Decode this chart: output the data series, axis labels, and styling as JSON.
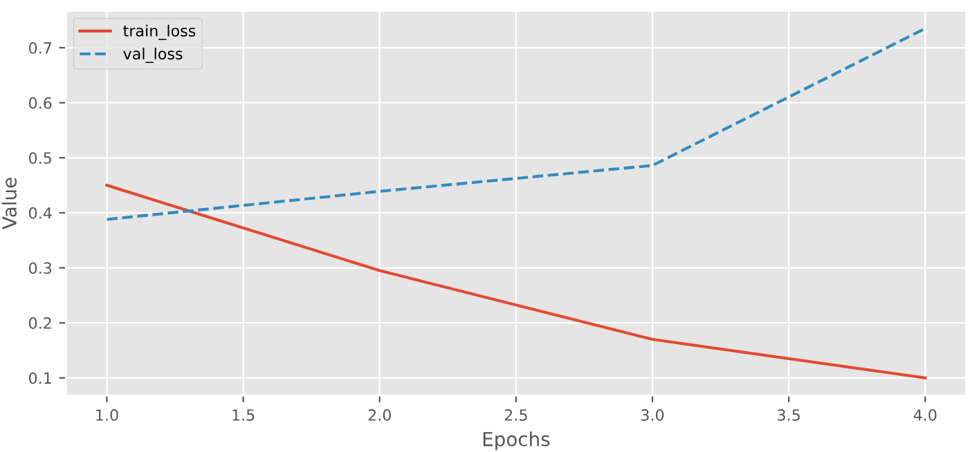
{
  "chart_data": {
    "type": "line",
    "xlabel": "Epochs",
    "ylabel": "Value",
    "x": [
      1,
      2,
      3,
      4
    ],
    "series": [
      {
        "name": "train_loss",
        "color": "#e24a33",
        "values": [
          0.45,
          0.295,
          0.17,
          0.1
        ],
        "line_style": "solid"
      },
      {
        "name": "val_loss",
        "color": "#348abd",
        "values": [
          0.388,
          0.439,
          0.486,
          0.735
        ],
        "line_style": "dashed"
      }
    ],
    "xlim": [
      0.85,
      4.15
    ],
    "xticks": [
      {
        "value": 1,
        "label": "1.0"
      },
      {
        "value": 1.5,
        "label": "1.5"
      },
      {
        "value": 2,
        "label": "2.0"
      },
      {
        "value": 2.5,
        "label": "2.5"
      },
      {
        "value": 3,
        "label": "3.0"
      },
      {
        "value": 3.5,
        "label": "3.5"
      },
      {
        "value": 4,
        "label": "4.0"
      }
    ],
    "ylim": [
      0.068,
      0.767
    ],
    "yticks": [
      0.1,
      0.2,
      0.3,
      0.4,
      0.5,
      0.6,
      0.7
    ],
    "grid": true,
    "legend": "top left",
    "marker": "none"
  }
}
